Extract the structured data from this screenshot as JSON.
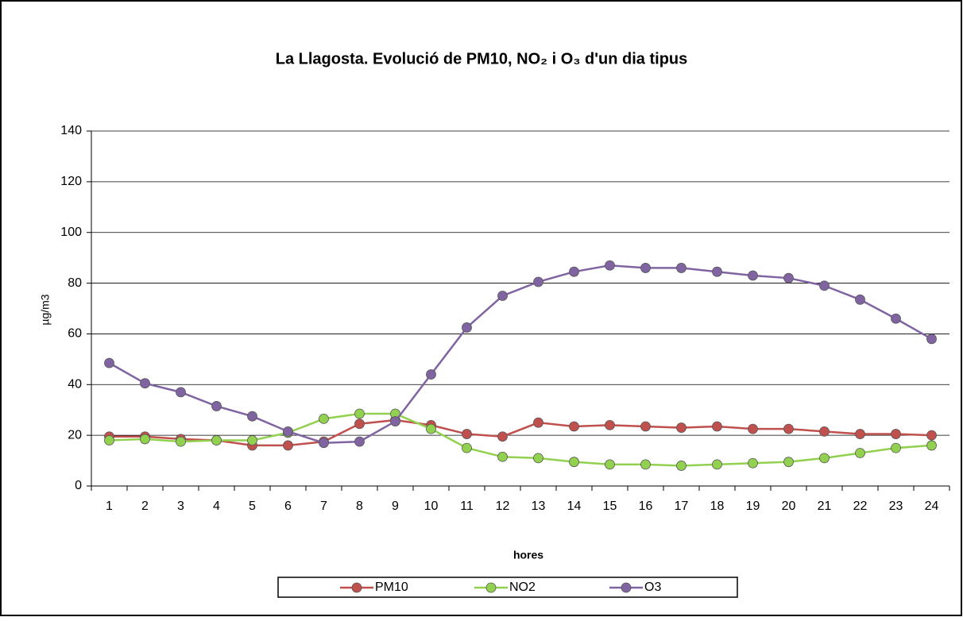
{
  "chart_data": {
    "type": "line",
    "title": "La Llagosta. Evolució de PM10, NO₂ i O₃  d'un dia tipus",
    "x_label": "hores",
    "y_label": "µg/m3",
    "categories": [
      "1",
      "2",
      "3",
      "4",
      "5",
      "6",
      "7",
      "8",
      "9",
      "10",
      "11",
      "12",
      "13",
      "14",
      "15",
      "16",
      "17",
      "18",
      "19",
      "20",
      "21",
      "22",
      "23",
      "24"
    ],
    "series": [
      {
        "name": "PM10",
        "color": "#c0504d",
        "values": [
          19.5,
          19.5,
          18.5,
          18,
          16,
          16,
          17.5,
          24.5,
          26,
          24,
          20.5,
          19.5,
          25,
          23.5,
          24,
          23.5,
          23,
          23.5,
          22.5,
          22.5,
          21.5,
          20.5,
          20.5,
          20
        ]
      },
      {
        "name": "NO2",
        "color": "#92d050",
        "values": [
          18,
          18.5,
          17.5,
          18,
          18,
          21,
          26.5,
          28.5,
          28.5,
          22.5,
          15,
          11.5,
          11,
          9.5,
          8.5,
          8.5,
          8,
          8.5,
          9,
          9.5,
          11,
          13,
          15,
          16
        ]
      },
      {
        "name": "O3",
        "color": "#8064a2",
        "values": [
          48.5,
          40.5,
          37,
          31.5,
          27.5,
          21.5,
          17,
          17.5,
          25.5,
          44,
          62.5,
          75,
          80.5,
          84.5,
          87,
          86,
          86,
          84.5,
          83,
          82,
          79,
          73.5,
          66,
          58
        ]
      }
    ],
    "ylim": [
      0,
      140
    ],
    "yticks": [
      0,
      20,
      40,
      60,
      80,
      100,
      120,
      140
    ],
    "grid": true,
    "legend": "bottom"
  }
}
